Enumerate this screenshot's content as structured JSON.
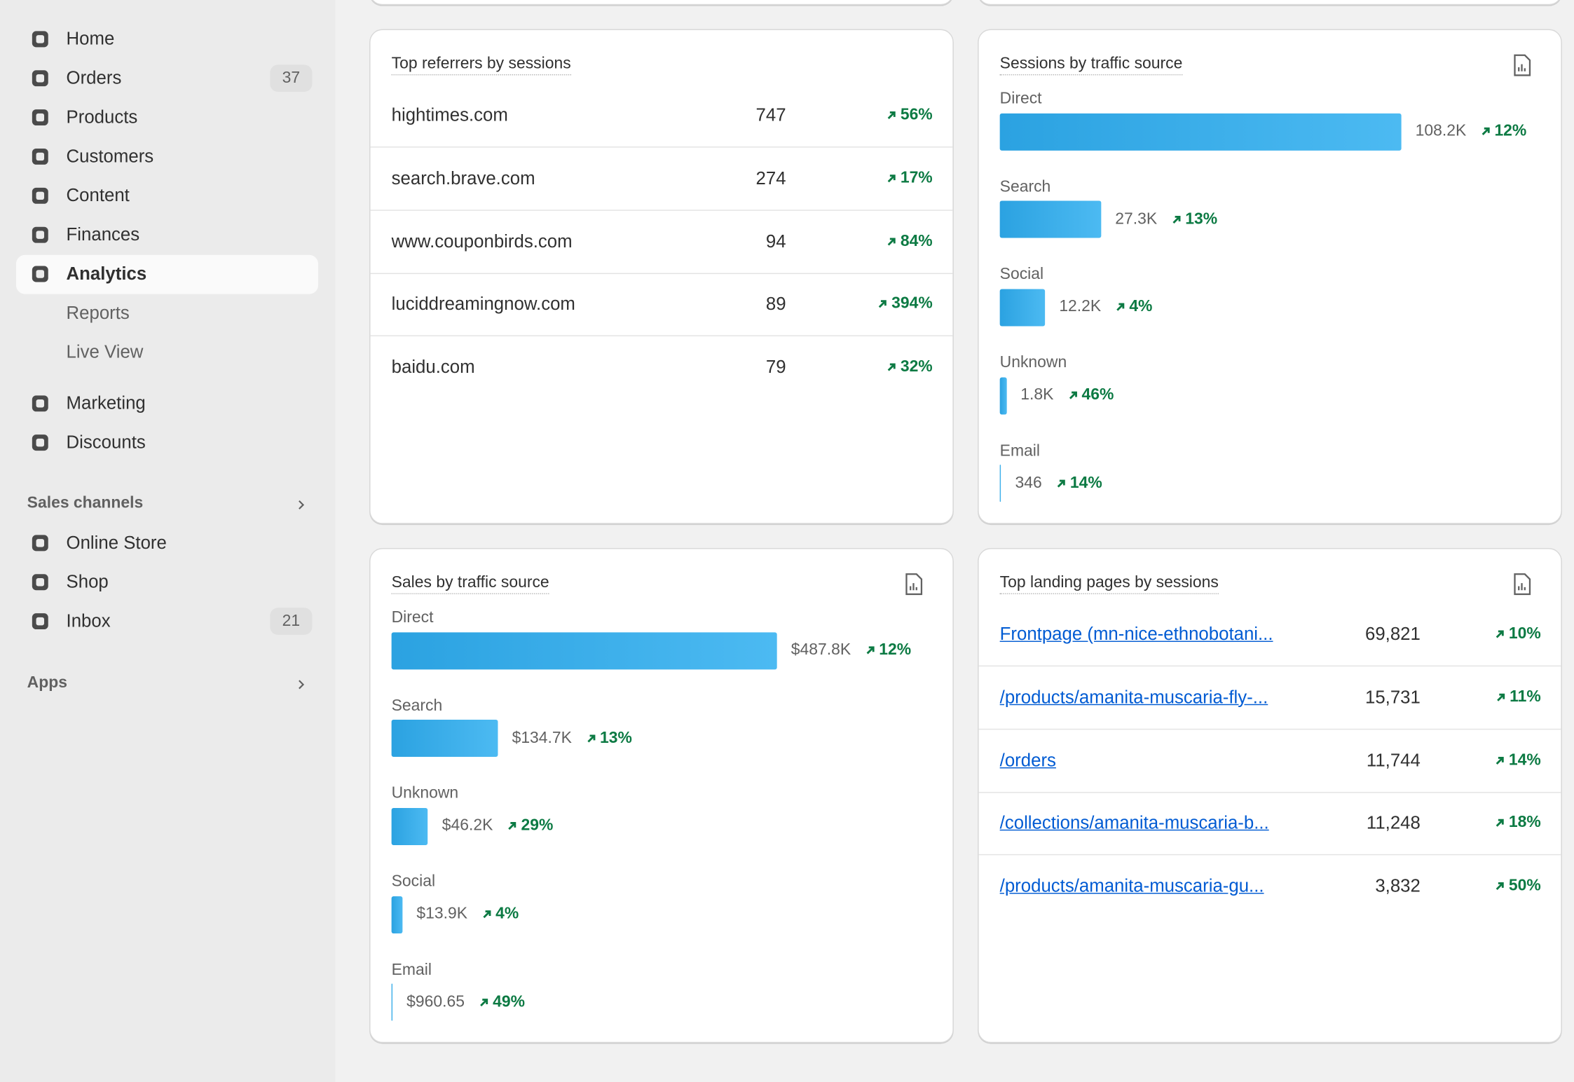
{
  "sidebar": {
    "nav": [
      {
        "label": "Home"
      },
      {
        "label": "Orders",
        "badge": "37"
      },
      {
        "label": "Products"
      },
      {
        "label": "Customers"
      },
      {
        "label": "Content"
      },
      {
        "label": "Finances"
      },
      {
        "label": "Analytics",
        "active": true,
        "children": [
          "Reports",
          "Live View"
        ]
      },
      {
        "label": "Marketing"
      },
      {
        "label": "Discounts"
      }
    ],
    "sales_channels": {
      "title": "Sales channels",
      "items": [
        {
          "label": "Online Store"
        },
        {
          "label": "Shop"
        },
        {
          "label": "Inbox",
          "badge": "21"
        }
      ]
    },
    "apps": {
      "title": "Apps"
    }
  },
  "top_referrers": {
    "title": "Top referrers by sessions",
    "rows": [
      {
        "name": "hightimes.com",
        "sessions": "747",
        "change": "56%"
      },
      {
        "name": "search.brave.com",
        "sessions": "274",
        "change": "17%"
      },
      {
        "name": "www.couponbirds.com",
        "sessions": "94",
        "change": "84%"
      },
      {
        "name": "luciddreamingnow.com",
        "sessions": "89",
        "change": "394%"
      },
      {
        "name": "baidu.com",
        "sessions": "79",
        "change": "32%"
      }
    ]
  },
  "sessions_by_source": {
    "title": "Sessions by traffic source",
    "items": [
      {
        "label": "Direct",
        "value": 108200,
        "value_label": "108.2K",
        "change": "12%"
      },
      {
        "label": "Search",
        "value": 27300,
        "value_label": "27.3K",
        "change": "13%"
      },
      {
        "label": "Social",
        "value": 12200,
        "value_label": "12.2K",
        "change": "4%"
      },
      {
        "label": "Unknown",
        "value": 1800,
        "value_label": "1.8K",
        "change": "46%"
      },
      {
        "label": "Email",
        "value": 346,
        "value_label": "346",
        "change": "14%"
      }
    ]
  },
  "sales_by_source": {
    "title": "Sales by traffic source",
    "items": [
      {
        "label": "Direct",
        "value": 487800,
        "value_label": "$487.8K",
        "change": "12%"
      },
      {
        "label": "Search",
        "value": 134700,
        "value_label": "$134.7K",
        "change": "13%"
      },
      {
        "label": "Unknown",
        "value": 46200,
        "value_label": "$46.2K",
        "change": "29%"
      },
      {
        "label": "Social",
        "value": 13900,
        "value_label": "$13.9K",
        "change": "4%"
      },
      {
        "label": "Email",
        "value": 960.65,
        "value_label": "$960.65",
        "change": "49%"
      }
    ]
  },
  "top_landing_pages": {
    "title": "Top landing pages by sessions",
    "rows": [
      {
        "page": "Frontpage (mn-nice-ethnobotani...",
        "sessions": "69,821",
        "change": "10%"
      },
      {
        "page": "/products/amanita-muscaria-fly-...",
        "sessions": "15,731",
        "change": "11%"
      },
      {
        "page": "/orders",
        "sessions": "11,744",
        "change": "14%"
      },
      {
        "page": "/collections/amanita-muscaria-b...",
        "sessions": "11,248",
        "change": "18%"
      },
      {
        "page": "/products/amanita-muscaria-gu...",
        "sessions": "3,832",
        "change": "50%"
      }
    ]
  }
}
